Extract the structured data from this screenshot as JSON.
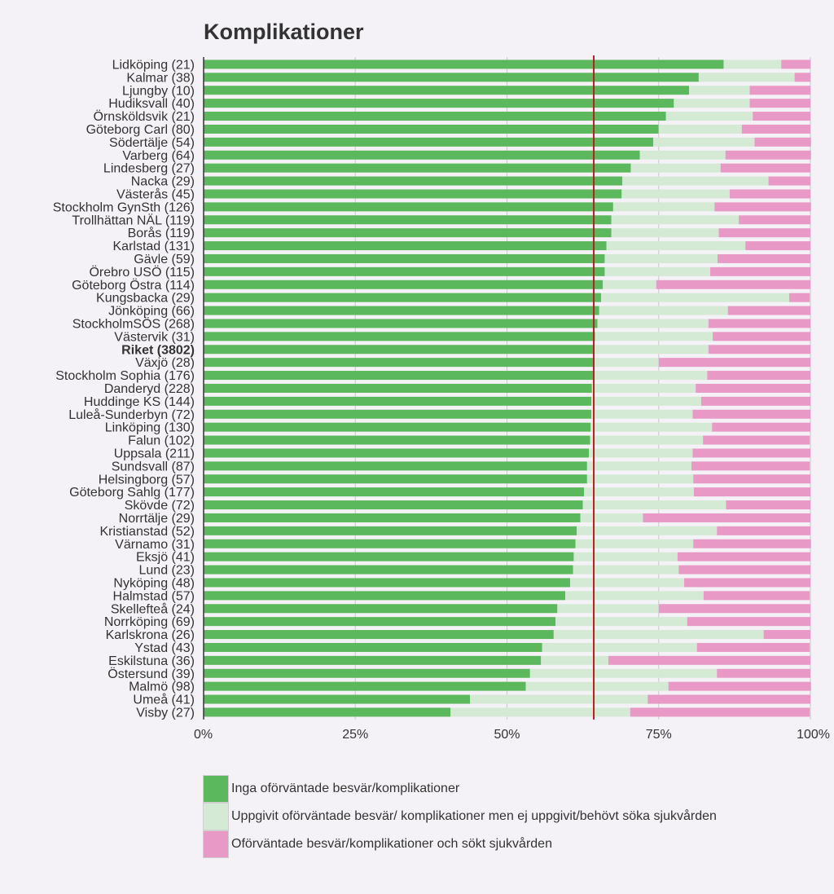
{
  "chart_data": {
    "type": "bar",
    "orientation": "horizontal",
    "stacked": true,
    "title": "Komplikationer",
    "xlabel": "",
    "ylabel": "",
    "xlim": [
      0,
      100
    ],
    "x_ticks": [
      "0%",
      "25%",
      "50%",
      "75%",
      "100%"
    ],
    "reference_line": {
      "name": "Riket",
      "value": 64.3,
      "color": "#b22222"
    },
    "highlight_category": "Riket (3802)",
    "colors": [
      "#5cb85c",
      "#d4ead5",
      "#e899c5"
    ],
    "categories": [
      "Lidköping (21)",
      "Kalmar (38)",
      "Ljungby (10)",
      "Hudiksvall (40)",
      "Örnsköldsvik (21)",
      "Göteborg Carl (80)",
      "Södertälje (54)",
      "Varberg (64)",
      "Lindesberg (27)",
      "Nacka (29)",
      "Västerås (45)",
      "Stockholm GynSth (126)",
      "Trollhättan NÄL (119)",
      "Borås (119)",
      "Karlstad (131)",
      "Gävle (59)",
      "Örebro USÖ (115)",
      "Göteborg Östra (114)",
      "Kungsbacka (29)",
      "Jönköping (66)",
      "StockholmSÖS (268)",
      "Västervik (31)",
      "Riket (3802)",
      "Växjö (28)",
      "Stockholm Sophia (176)",
      "Danderyd (228)",
      "Huddinge KS (144)",
      "Luleå-Sunderbyn (72)",
      "Linköping (130)",
      "Falun (102)",
      "Uppsala (211)",
      "Sundsvall (87)",
      "Helsingborg (57)",
      "Göteborg Sahlg (177)",
      "Skövde (72)",
      "Norrtälje (29)",
      "Kristianstad (52)",
      "Värnamo (31)",
      "Eksjö (41)",
      "Lund (23)",
      "Nyköping (48)",
      "Halmstad (57)",
      "Skellefteå (24)",
      "Norrköping (69)",
      "Karlskrona (26)",
      "Ystad (43)",
      "Eskilstuna (36)",
      "Östersund (39)",
      "Malmö (98)",
      "Umeå (41)",
      "Visby (27)"
    ],
    "series": [
      {
        "name": "Inga oförväntade besvär/komplikationer",
        "values": [
          85.7,
          81.6,
          80.0,
          77.5,
          76.2,
          75.0,
          74.1,
          71.9,
          70.4,
          69.0,
          68.9,
          67.5,
          67.2,
          67.2,
          66.4,
          66.1,
          66.1,
          65.8,
          65.5,
          65.2,
          64.9,
          64.5,
          64.3,
          64.3,
          64.2,
          64.0,
          63.9,
          63.9,
          63.8,
          63.7,
          63.5,
          63.2,
          63.2,
          62.7,
          62.5,
          62.1,
          61.5,
          61.3,
          61.0,
          60.9,
          60.4,
          59.6,
          58.3,
          58.0,
          57.7,
          55.8,
          55.6,
          53.8,
          53.1,
          43.9,
          40.7
        ]
      },
      {
        "name": "Uppgivit oförväntade besvär/ komplikationer men ej uppgivit/behövt söka sjukvården",
        "values": [
          9.5,
          15.8,
          10.0,
          12.5,
          14.3,
          13.7,
          16.7,
          14.1,
          14.8,
          24.1,
          17.8,
          16.7,
          21.0,
          17.7,
          22.9,
          18.6,
          17.4,
          8.8,
          31.0,
          21.2,
          18.3,
          19.4,
          18.9,
          10.7,
          18.8,
          17.1,
          18.1,
          16.7,
          20.0,
          18.6,
          17.1,
          17.2,
          17.5,
          18.1,
          23.6,
          10.3,
          23.1,
          19.4,
          17.1,
          17.4,
          18.8,
          22.8,
          16.7,
          21.7,
          34.6,
          25.5,
          11.1,
          30.8,
          23.5,
          29.3,
          29.6
        ]
      },
      {
        "name": "Oförväntade besvär/komplikationer och sökt sjukvården",
        "values": [
          4.8,
          2.6,
          10.0,
          10.0,
          9.5,
          11.3,
          9.3,
          14.1,
          14.8,
          6.9,
          13.3,
          15.9,
          11.8,
          15.1,
          10.7,
          15.3,
          16.5,
          25.4,
          3.4,
          13.6,
          16.8,
          16.1,
          16.8,
          25.0,
          17.0,
          18.9,
          18.0,
          19.4,
          16.2,
          17.6,
          19.4,
          19.5,
          19.3,
          19.2,
          13.9,
          27.6,
          15.4,
          19.4,
          21.9,
          21.7,
          20.8,
          17.5,
          25.0,
          20.3,
          7.7,
          18.6,
          33.3,
          15.4,
          23.5,
          26.8,
          29.6
        ]
      }
    ]
  }
}
